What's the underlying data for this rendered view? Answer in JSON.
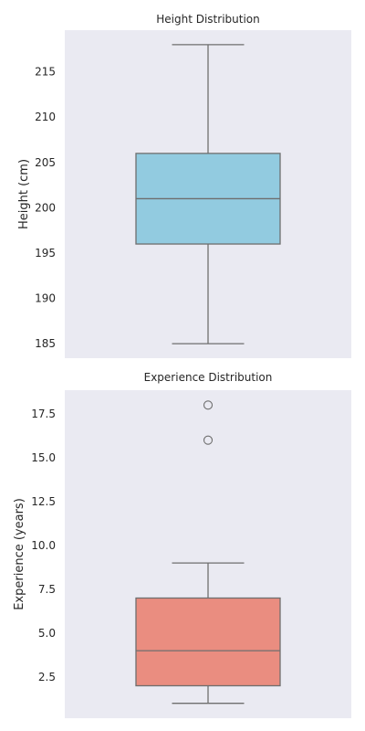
{
  "chart_data": [
    {
      "type": "box",
      "title": "Height Distribution",
      "xlabel": "",
      "ylabel": "Height (cm)",
      "ylim": [
        183.4,
        219.6
      ],
      "yticks": [
        185,
        190,
        195,
        200,
        205,
        210,
        215
      ],
      "ytick_labels": [
        "185",
        "190",
        "195",
        "200",
        "205",
        "210",
        "215"
      ],
      "grid": false,
      "box": {
        "whisker_low": 185,
        "q1": 196,
        "median": 201,
        "q3": 206,
        "whisker_high": 218,
        "outliers": []
      },
      "colors": {
        "fill": "#92cbe0",
        "line": "#6e6e6e",
        "background": "#eaeaf2"
      }
    },
    {
      "type": "box",
      "title": "Experience Distribution",
      "xlabel": "",
      "ylabel": "Experience (years)",
      "ylim": [
        0.15,
        18.85
      ],
      "yticks": [
        2.5,
        5.0,
        7.5,
        10.0,
        12.5,
        15.0,
        17.5
      ],
      "ytick_labels": [
        "2.5",
        "5.0",
        "7.5",
        "10.0",
        "12.5",
        "15.0",
        "17.5"
      ],
      "grid": false,
      "box": {
        "whisker_low": 1,
        "q1": 2,
        "median": 4,
        "q3": 7,
        "whisker_high": 9,
        "outliers": [
          16,
          18
        ]
      },
      "colors": {
        "fill": "#ea8d80",
        "line": "#6e6e6e",
        "background": "#eaeaf2"
      }
    }
  ]
}
